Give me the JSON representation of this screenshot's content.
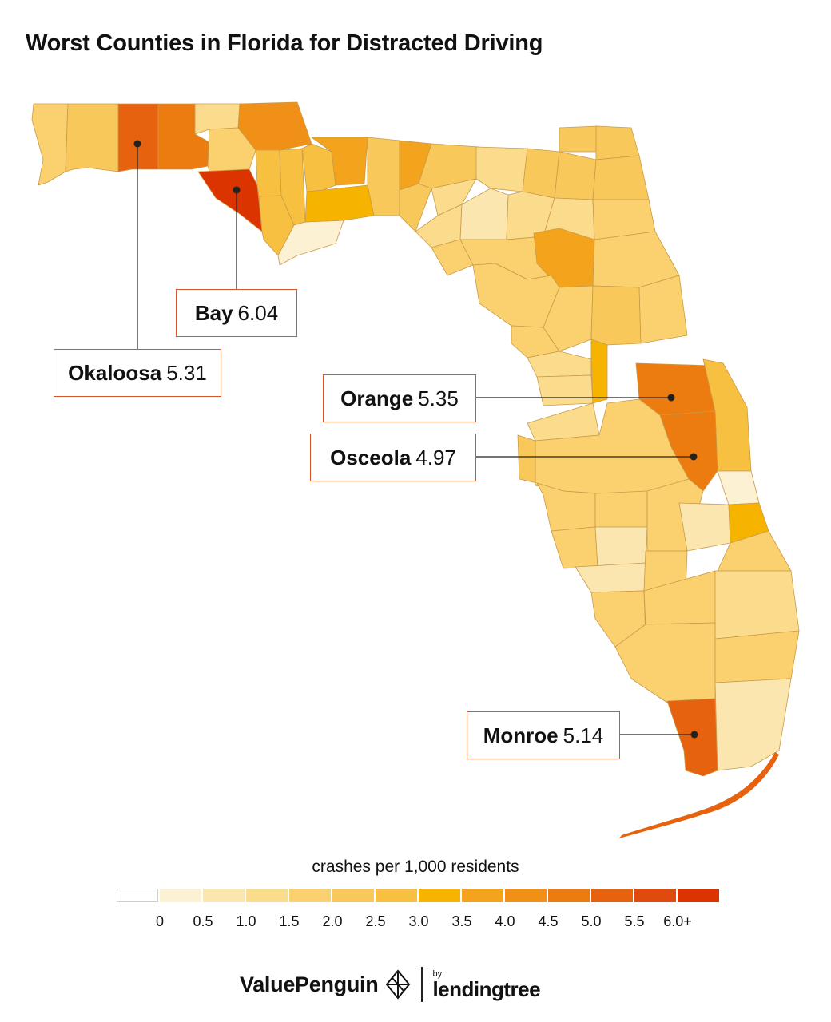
{
  "title": "Worst Counties in Florida for Distracted Driving",
  "legend": {
    "title": "crashes per 1,000 residents",
    "colors": [
      "#ffffff",
      "#fdf1d3",
      "#fbe6b0",
      "#fbdc8c",
      "#fad16e",
      "#f8c95a",
      "#f7c040",
      "#f6b400",
      "#f3a31c",
      "#f19016",
      "#ec7c10",
      "#e6620e",
      "#e04a0c",
      "#dc3400"
    ],
    "ticks": [
      "0",
      "0.5",
      "1.0",
      "1.5",
      "2.0",
      "2.5",
      "3.0",
      "3.5",
      "4.0",
      "4.5",
      "5.0",
      "5.5",
      "6.0+"
    ]
  },
  "callouts": [
    {
      "name": "Bay",
      "value": "6.04"
    },
    {
      "name": "Okaloosa",
      "value": "5.31"
    },
    {
      "name": "Orange",
      "value": "5.35"
    },
    {
      "name": "Osceola",
      "value": "4.97"
    },
    {
      "name": "Monroe",
      "value": "5.14"
    }
  ],
  "chart_data": {
    "type": "choropleth",
    "region": "Florida counties",
    "metric": "crashes per 1,000 residents",
    "scale": {
      "min": 0,
      "max": 6.0,
      "step": 0.5,
      "top_label": "6.0+"
    },
    "highlighted": [
      {
        "county": "Bay",
        "value": 6.04
      },
      {
        "county": "Okaloosa",
        "value": 5.31
      },
      {
        "county": "Orange",
        "value": 5.35
      },
      {
        "county": "Osceola",
        "value": 4.97
      },
      {
        "county": "Monroe",
        "value": 5.14
      }
    ]
  },
  "branding": {
    "logo": "ValuePenguin",
    "logo_icon": "valuepenguin-mark-icon",
    "by": "by",
    "partner": "lendingtree"
  }
}
